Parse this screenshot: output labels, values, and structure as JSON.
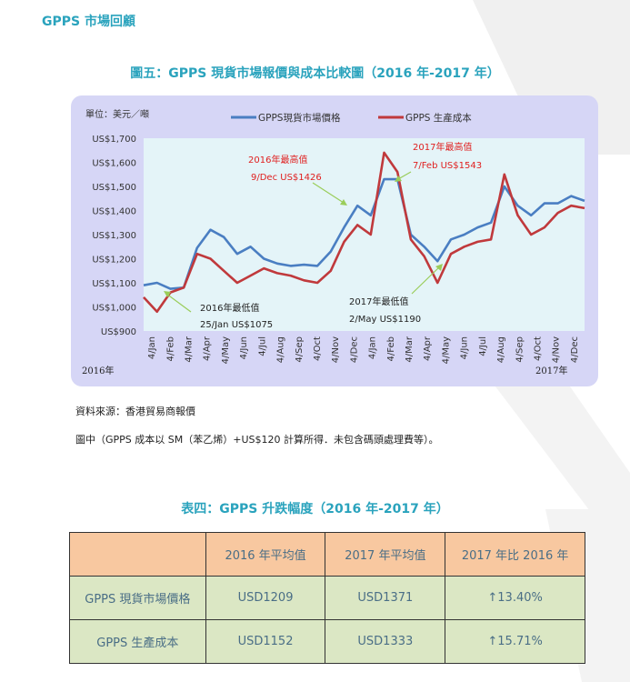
{
  "page": {
    "section_title": "GPPS 市場回顧",
    "figure_title": "圖五：GPPS 現貨市場報價與成本比較圖（2016 年-2017 年）",
    "source_note": "資料來源：香港貿易商報價",
    "calc_note": "圖中（GPPS 成本以 SM（苯乙烯）+US$120 計算所得．未包含碼頭處理費等）。",
    "table_title": "表四：GPPS 升跌幅度（2016 年-2017 年）"
  },
  "colors": {
    "accent": "#2aa3bd",
    "price_line": "#4a7ec2",
    "cost_line": "#c0393c",
    "chart_panel": "#d6d6f6",
    "plot_bg": "#e4f4f8",
    "annotation_red": "#e02020",
    "arrow_green": "#9acd5a",
    "table_head": "#f8c8a0",
    "table_body": "#dbe7c4"
  },
  "chart_data": {
    "type": "line",
    "unit_label": "單位：美元／噸",
    "ylim": [
      900,
      1700
    ],
    "y_ticks": [
      "US$1,700",
      "US$1,600",
      "US$1,500",
      "US$1,400",
      "US$1,300",
      "US$1,200",
      "US$1,100",
      "US$1,000",
      "US$900"
    ],
    "y_tick_values": [
      1700,
      1600,
      1500,
      1400,
      1300,
      1200,
      1100,
      1000,
      900
    ],
    "x_ticks": [
      "4/Jan",
      "4/Feb",
      "4/Mar",
      "4/Apr",
      "4/May",
      "4/Jun",
      "4/Jul",
      "4/Aug",
      "4/Sep",
      "4/Oct",
      "4/Nov",
      "4/Dec",
      "4/Jan",
      "4/Feb",
      "4/Mar",
      "4/Apr",
      "4/May",
      "4/Jun",
      "4/Jul",
      "4/Aug",
      "4/Sep",
      "4/Oct",
      "4/Nov",
      "4/Dec"
    ],
    "year_start_label": "2016年",
    "year_end_label": "2017年",
    "grid": false,
    "legend_position": "top",
    "series": [
      {
        "name": "GPPS現貨市場價格",
        "values": [
          1090,
          1100,
          1075,
          1080,
          1245,
          1320,
          1290,
          1220,
          1250,
          1200,
          1180,
          1170,
          1175,
          1170,
          1230,
          1330,
          1420,
          1380,
          1530,
          1530,
          1300,
          1250,
          1190,
          1280,
          1300,
          1330,
          1350,
          1500,
          1420,
          1380,
          1430,
          1430,
          1460,
          1440
        ]
      },
      {
        "name": "GPPS 生產成本",
        "values": [
          1040,
          980,
          1060,
          1080,
          1220,
          1200,
          1150,
          1100,
          1130,
          1160,
          1140,
          1130,
          1110,
          1100,
          1150,
          1270,
          1340,
          1300,
          1640,
          1560,
          1280,
          1210,
          1100,
          1220,
          1250,
          1270,
          1280,
          1550,
          1380,
          1300,
          1330,
          1390,
          1420,
          1410
        ]
      }
    ],
    "annotations": [
      {
        "text_1": "2016年最高值",
        "text_2": "9/Dec  US$1426",
        "color": "red"
      },
      {
        "text_1": "2017年最高值",
        "text_2": "7/Feb US$1543",
        "color": "red"
      },
      {
        "text_1": "2016年最低值",
        "text_2": "25/Jan  US$1075",
        "color": "black"
      },
      {
        "text_1": "2017年最低值",
        "text_2": "2/May  US$1190",
        "color": "black"
      }
    ]
  },
  "table": {
    "headers": [
      "",
      "2016 年平均值",
      "2017 年平均值",
      "2017 年比 2016 年"
    ],
    "rows": [
      {
        "label": "GPPS 現貨市場價格",
        "v2016": "USD1209",
        "v2017": "USD1371",
        "change": "↑13.40%"
      },
      {
        "label": "GPPS 生產成本",
        "v2016": "USD1152",
        "v2017": "USD1333",
        "change": "↑15.71%"
      }
    ]
  }
}
